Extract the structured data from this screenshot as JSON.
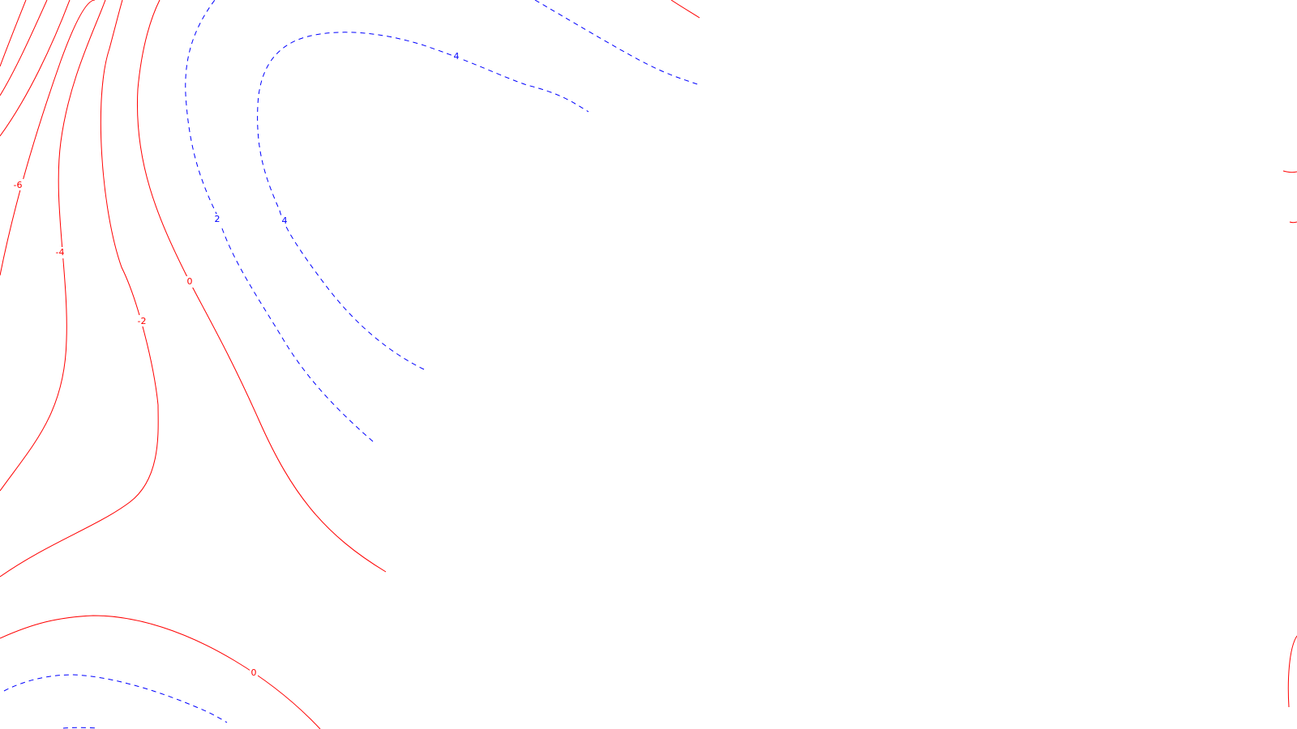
{
  "chart_data": {
    "type": "contour",
    "title": "",
    "xlabel": "",
    "ylabel": "",
    "grid": false,
    "legend": "none",
    "level_styles": {
      "negative_or_zero": {
        "color": "#ff0000",
        "dash": "solid"
      },
      "positive": {
        "color": "#0000ff",
        "dash": "dashed"
      }
    },
    "levels": [
      {
        "value": -6,
        "label": "-6",
        "sign": "neg"
      },
      {
        "value": -4,
        "label": "-4",
        "sign": "neg"
      },
      {
        "value": -2,
        "label": "-2",
        "sign": "neg"
      },
      {
        "value": 0,
        "label": "0",
        "sign": "neg"
      },
      {
        "value": 2,
        "label": "2",
        "sign": "pos"
      },
      {
        "value": 4,
        "label": "4",
        "sign": "pos"
      }
    ]
  }
}
